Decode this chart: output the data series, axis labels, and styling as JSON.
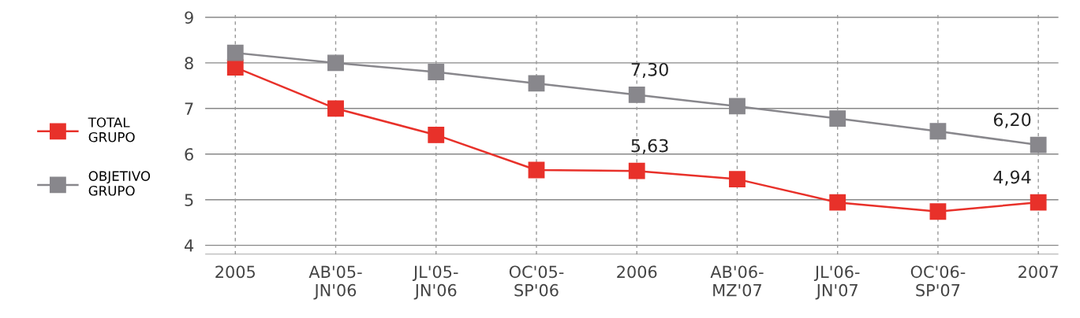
{
  "chart_data": {
    "type": "line",
    "categories": [
      "2005",
      "AB'05-\nJN'06",
      "JL'05-\nJN'06",
      "OC'05-\nSP'06",
      "2006",
      "AB'06-\nMZ'07",
      "JL'06-\nJN'07",
      "OC'06-\nSP'07",
      "2007"
    ],
    "series": [
      {
        "name": "TOTAL\nGRUPO",
        "color": "#e8312a",
        "values": [
          7.9,
          7.0,
          6.42,
          5.65,
          5.63,
          5.45,
          4.94,
          4.74,
          4.94
        ],
        "value_labels": [
          null,
          null,
          null,
          null,
          "5,63",
          null,
          null,
          null,
          "4,94"
        ]
      },
      {
        "name": "OBJETIVO\nGRUPO",
        "color": "#88878c",
        "values": [
          8.22,
          8.0,
          7.8,
          7.55,
          7.3,
          7.05,
          6.78,
          6.5,
          6.2
        ],
        "value_labels": [
          null,
          null,
          null,
          null,
          "7,30",
          null,
          null,
          null,
          "6,20"
        ]
      }
    ],
    "ylim": [
      3.8,
      9.1
    ],
    "yticks": [
      4,
      5,
      6,
      7,
      8,
      9
    ],
    "grid": true,
    "legend": "left",
    "marker": "square",
    "line_style": "solid"
  }
}
